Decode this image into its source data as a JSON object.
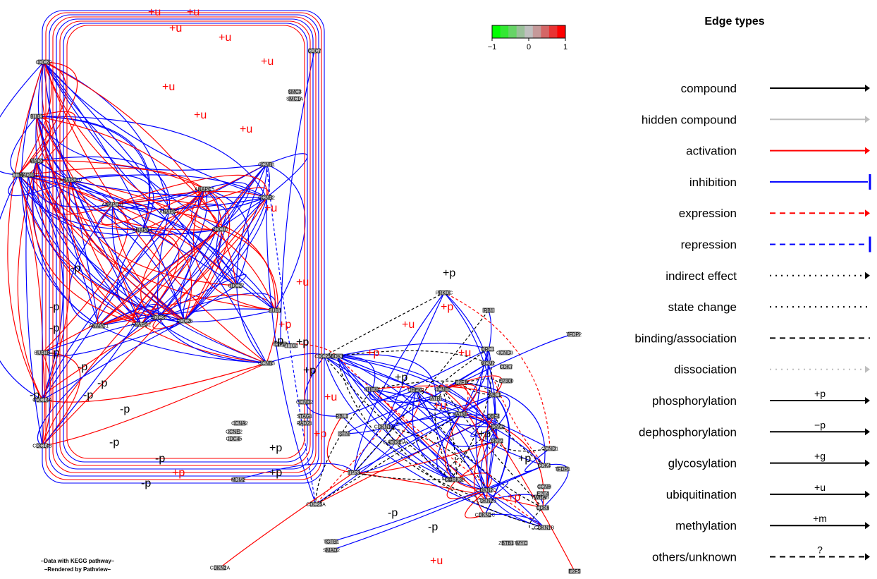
{
  "nodes": [
    {
      "label": "CDC20"
    },
    {
      "label": "BUB3"
    },
    {
      "label": "MAD2"
    },
    {
      "label": "TTK"
    },
    {
      "label": "MAD1L1"
    },
    {
      "label": "ANAPC10"
    },
    {
      "label": "ANAPC11"
    },
    {
      "label": "ANAPC7"
    },
    {
      "label": "ANAPC4"
    },
    {
      "label": "ANAPC5"
    },
    {
      "label": "ANAPC2"
    },
    {
      "label": "ANAPC1"
    },
    {
      "label": "CDC16"
    },
    {
      "label": "CDC27"
    },
    {
      "label": "CDC23"
    },
    {
      "label": "CDC26"
    },
    {
      "label": "BUB1"
    },
    {
      "label": "BUB1B"
    },
    {
      "label": "CDC14A"
    },
    {
      "label": "CDC14B"
    },
    {
      "label": "ESPL1"
    },
    {
      "label": "PTTG1"
    },
    {
      "label": "CDC7"
    },
    {
      "label": "SMC3"
    },
    {
      "label": "SMC1A"
    },
    {
      "label": "CCNB1"
    },
    {
      "label": "CCNB2"
    },
    {
      "label": "CCNB3"
    },
    {
      "label": "CDK1"
    },
    {
      "label": "CDC25A"
    },
    {
      "label": "CDC25B"
    },
    {
      "label": "MDM2"
    },
    {
      "label": "CDKN2A"
    },
    {
      "label": "CHEK1"
    },
    {
      "label": "CHEK2"
    },
    {
      "label": "ATM"
    },
    {
      "label": "ATR"
    },
    {
      "label": "TP53"
    },
    {
      "label": "CDKN1A"
    },
    {
      "label": "GADD45A"
    },
    {
      "label": "SFN"
    },
    {
      "label": "RBL1"
    },
    {
      "label": "E2F1"
    },
    {
      "label": "RB1"
    },
    {
      "label": "CCND1"
    },
    {
      "label": "CDK4"
    },
    {
      "label": "CDK6"
    },
    {
      "label": "CCNE1"
    },
    {
      "label": "CDK2"
    },
    {
      "label": "PRKDC"
    },
    {
      "label": "TFDP2"
    },
    {
      "label": "E2F5"
    },
    {
      "label": "TGFB1"
    },
    {
      "label": "SMAD2"
    },
    {
      "label": "GSK3B"
    },
    {
      "label": "CDKN2B"
    },
    {
      "label": "CDKN2C"
    },
    {
      "label": "CDKN2D"
    },
    {
      "label": "CDKN1B"
    },
    {
      "label": "ORC1"
    },
    {
      "label": "MCM2"
    },
    {
      "label": "DBF4"
    },
    {
      "label": "ABL1"
    },
    {
      "label": "HDAC1"
    },
    {
      "label": "SKP2"
    },
    {
      "label": "ZBTB17"
    },
    {
      "label": "MYC"
    },
    {
      "label": "CCNH"
    },
    {
      "label": "YWHAB"
    },
    {
      "label": "STAG1"
    },
    {
      "label": "RAD21"
    },
    {
      "label": "CCND2"
    },
    {
      "label": "CCND3"
    },
    {
      "label": "CDK7"
    },
    {
      "label": "EP300"
    },
    {
      "label": "CCNA2"
    },
    {
      "label": "CCNE2"
    },
    {
      "label": "CDC45"
    },
    {
      "label": "E2F4"
    },
    {
      "label": "TFDP1"
    }
  ],
  "edge_labels": [
    {
      "text": "+u"
    },
    {
      "text": "+u"
    },
    {
      "text": "+u"
    },
    {
      "text": "+u"
    },
    {
      "text": "+u"
    },
    {
      "text": "+u"
    },
    {
      "text": "+u"
    },
    {
      "text": "+u"
    },
    {
      "text": "+u"
    },
    {
      "text": "+u"
    },
    {
      "text": "+u"
    },
    {
      "text": "+u"
    },
    {
      "text": "+p"
    },
    {
      "text": "+p"
    },
    {
      "text": "+p"
    },
    {
      "text": "+p"
    },
    {
      "text": "+p"
    },
    {
      "text": "+p"
    },
    {
      "text": "+p"
    },
    {
      "text": "+p"
    },
    {
      "text": "+p"
    },
    {
      "text": "+p"
    },
    {
      "text": "+p"
    },
    {
      "text": "+p"
    },
    {
      "text": "-p"
    },
    {
      "text": "-p"
    },
    {
      "text": "-p"
    },
    {
      "text": "-p"
    },
    {
      "text": "-p"
    },
    {
      "text": "-p"
    },
    {
      "text": "-p"
    },
    {
      "text": "-p"
    },
    {
      "text": "-p"
    },
    {
      "text": "-p"
    },
    {
      "text": "-p"
    },
    {
      "text": "-p"
    },
    {
      "text": "-p"
    },
    {
      "text": "-p"
    },
    {
      "text": "+u"
    },
    {
      "text": "+p"
    },
    {
      "text": "-p"
    },
    {
      "text": "+u"
    },
    {
      "text": "+p"
    },
    {
      "text": "+u"
    }
  ],
  "colorbar": {
    "ticks": [
      "−1",
      "0",
      "1"
    ],
    "colors": [
      "#00ff00",
      "#33e833",
      "#66d466",
      "#99c099",
      "#bfbfbf",
      "#c59999",
      "#d46666",
      "#e83333",
      "#ff0000"
    ]
  },
  "legend": {
    "title": "Edge types",
    "items": [
      {
        "label": "compound",
        "color": "#000000",
        "dash": "",
        "end": "arrow",
        "sym": ""
      },
      {
        "label": "hidden compound",
        "color": "#bebebe",
        "dash": "",
        "end": "arrow",
        "sym": ""
      },
      {
        "label": "activation",
        "color": "#ff0000",
        "dash": "",
        "end": "arrow",
        "sym": ""
      },
      {
        "label": "inhibition",
        "color": "#0000ff",
        "dash": "",
        "end": "bar",
        "sym": ""
      },
      {
        "label": "expression",
        "color": "#ff0000",
        "dash": "dashed",
        "end": "arrow",
        "sym": ""
      },
      {
        "label": "repression",
        "color": "#0000ff",
        "dash": "dashed",
        "end": "bar",
        "sym": ""
      },
      {
        "label": "indirect effect",
        "color": "#000000",
        "dash": "dotted",
        "end": "arrow",
        "sym": ""
      },
      {
        "label": "state change",
        "color": "#000000",
        "dash": "dotted",
        "end": "none",
        "sym": ""
      },
      {
        "label": "binding/association",
        "color": "#000000",
        "dash": "dashed",
        "end": "none",
        "sym": ""
      },
      {
        "label": "dissociation",
        "color": "#bebebe",
        "dash": "dotted",
        "end": "arrow",
        "sym": ""
      },
      {
        "label": "phosphorylation",
        "color": "#000000",
        "dash": "",
        "end": "arrow",
        "sym": "+p"
      },
      {
        "label": "dephosphorylation",
        "color": "#000000",
        "dash": "",
        "end": "arrow",
        "sym": "−p"
      },
      {
        "label": "glycosylation",
        "color": "#000000",
        "dash": "",
        "end": "arrow",
        "sym": "+g"
      },
      {
        "label": "ubiquitination",
        "color": "#000000",
        "dash": "",
        "end": "arrow",
        "sym": "+u"
      },
      {
        "label": "methylation",
        "color": "#000000",
        "dash": "",
        "end": "arrow",
        "sym": "+m"
      },
      {
        "label": "others/unknown",
        "color": "#000000",
        "dash": "dashed",
        "end": "arrow",
        "sym": "?"
      }
    ]
  },
  "credits": {
    "line1": "–Data with KEGG pathway–",
    "line2": "–Rendered  by  Pathview–"
  },
  "palette": {
    "activation": "#ff0000",
    "inhibition": "#0000ff",
    "black": "#000000",
    "grey": "#bebebe"
  }
}
